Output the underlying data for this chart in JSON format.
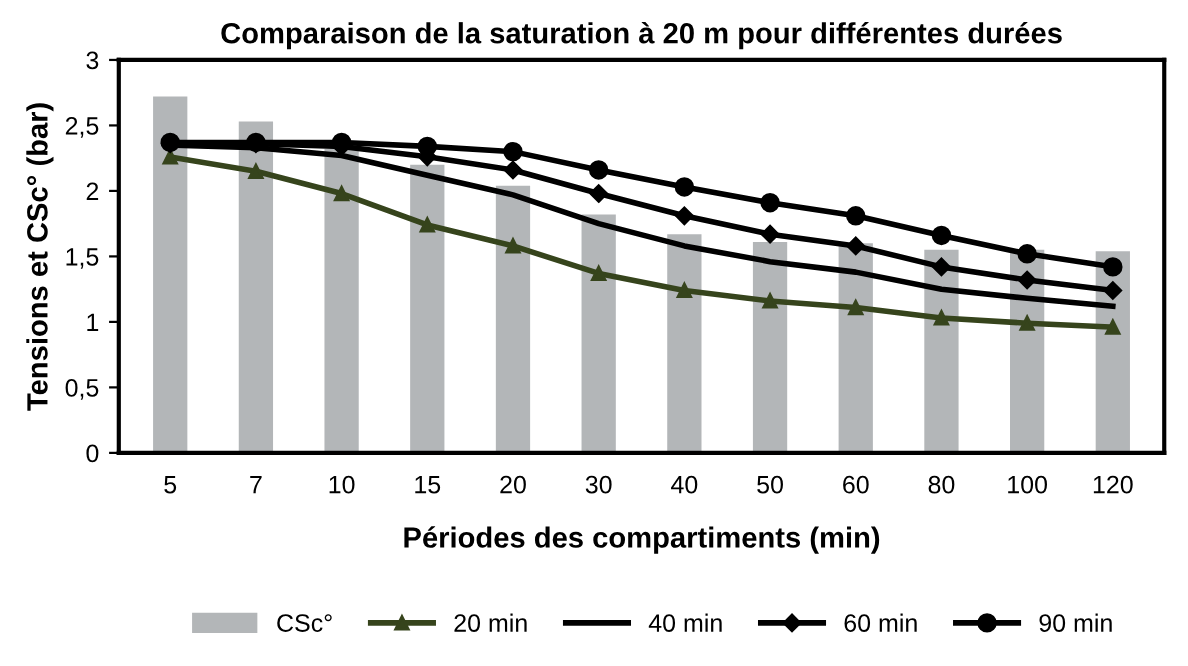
{
  "chart_data": {
    "type": "bar",
    "title": "Comparaison de la saturation à 20 m pour différentes durées",
    "xlabel": "Périodes des compartiments (min)",
    "ylabel": "Tensions et CSc° (bar)",
    "categories": [
      "5",
      "7",
      "10",
      "15",
      "20",
      "30",
      "40",
      "50",
      "60",
      "80",
      "100",
      "120"
    ],
    "series": [
      {
        "name": "CSc°",
        "color": "#b3b6b8",
        "values": [
          2.72,
          2.53,
          2.32,
          2.2,
          2.04,
          1.82,
          1.67,
          1.61,
          1.6,
          1.55,
          1.55,
          1.54
        ]
      },
      {
        "name": "20 min",
        "type": "line",
        "marker": "triangle",
        "color": "#36441c",
        "values": [
          2.26,
          2.15,
          1.98,
          1.74,
          1.58,
          1.37,
          1.24,
          1.16,
          1.11,
          1.03,
          0.99,
          0.96
        ]
      },
      {
        "name": "40 min",
        "type": "line",
        "marker": "none",
        "color": "#000000",
        "values": [
          2.35,
          2.33,
          2.27,
          2.12,
          1.97,
          1.75,
          1.58,
          1.46,
          1.38,
          1.25,
          1.18,
          1.12
        ]
      },
      {
        "name": "60 min",
        "type": "line",
        "marker": "diamond",
        "color": "#000000",
        "values": [
          2.36,
          2.36,
          2.34,
          2.26,
          2.16,
          1.98,
          1.81,
          1.67,
          1.58,
          1.42,
          1.32,
          1.24
        ]
      },
      {
        "name": "90 min",
        "type": "line",
        "marker": "circle",
        "color": "#000000",
        "values": [
          2.37,
          2.37,
          2.37,
          2.34,
          2.3,
          2.16,
          2.03,
          1.91,
          1.81,
          1.66,
          1.52,
          1.42
        ]
      }
    ],
    "ylim": [
      0,
      3
    ],
    "yticks": [
      0,
      {
        "value": 0.5,
        "label": "0,5"
      },
      1,
      {
        "value": 1.5,
        "label": "1,5"
      },
      2,
      {
        "value": 2.5,
        "label": "2,5"
      },
      3
    ],
    "grid": false,
    "legend": "bottom"
  }
}
